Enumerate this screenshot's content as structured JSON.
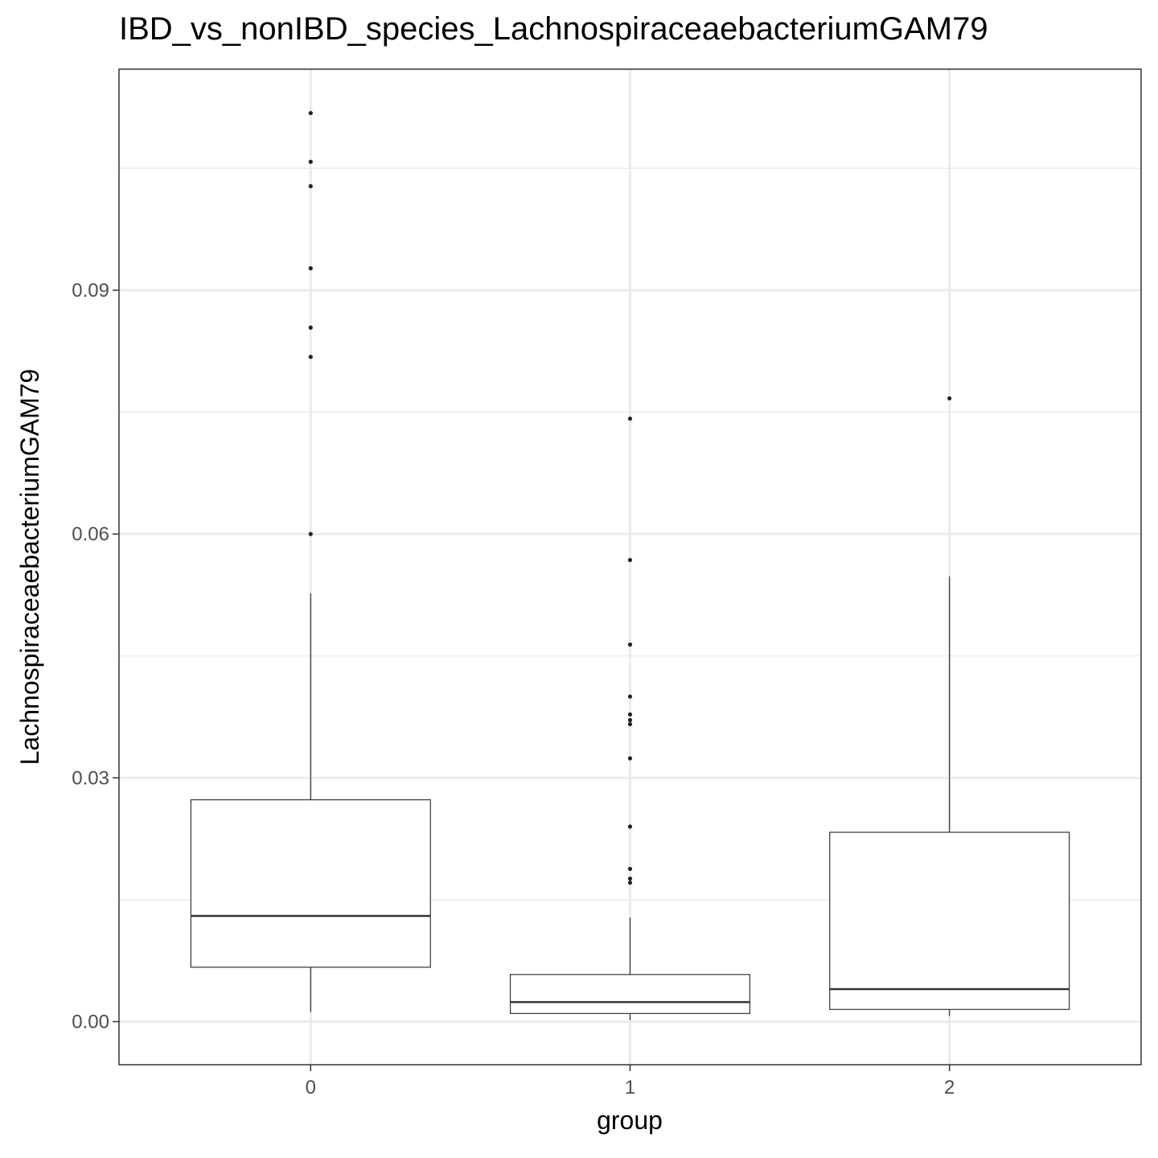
{
  "chart_data": {
    "type": "boxplot",
    "title": "IBD_vs_nonIBD_species_LachnospiraceaebacteriumGAM79",
    "xlabel": "group",
    "ylabel": "LachnospiraceaebacteriumGAM79",
    "categories": [
      "0",
      "1",
      "2"
    ],
    "ylim": [
      -0.0053,
      0.1172
    ],
    "yticks": [
      0.0,
      0.03,
      0.06,
      0.09
    ],
    "ytick_labels": [
      "0.00",
      "0.03",
      "0.06",
      "0.09"
    ],
    "grid": true,
    "boxes": [
      {
        "group": "0",
        "whisker_low": 0.0012,
        "q1": 0.0067,
        "median": 0.013,
        "q3": 0.0273,
        "whisker_high": 0.0527,
        "outliers": [
          0.06,
          0.0818,
          0.0854,
          0.0927,
          0.1028,
          0.1058,
          0.1118
        ]
      },
      {
        "group": "1",
        "whisker_low": 0.0002,
        "q1": 0.001,
        "median": 0.0024,
        "q3": 0.0058,
        "whisker_high": 0.0128,
        "outliers": [
          0.0171,
          0.0176,
          0.0188,
          0.024,
          0.0324,
          0.0366,
          0.0371,
          0.0378,
          0.04,
          0.0464,
          0.0568,
          0.0742
        ]
      },
      {
        "group": "2",
        "whisker_low": 0.0007,
        "q1": 0.0015,
        "median": 0.004,
        "q3": 0.0233,
        "whisker_high": 0.0548,
        "outliers": [
          0.0767
        ]
      }
    ]
  }
}
